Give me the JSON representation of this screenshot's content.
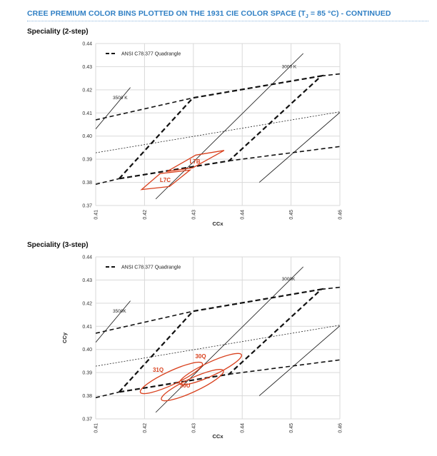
{
  "page": {
    "title_main": "CREE PREMIUM COLOR BINS PLOTTED ON THE 1931 CIE COLOR SPACE (T",
    "title_sub": "J",
    "title_tail": " = 85 °C) - CONTINUED"
  },
  "charts": [
    {
      "section_title": "Speciality (2-step)",
      "xlabel": "CCx",
      "ylabel": "",
      "legend": "ANSI C78.377 Quadrangle",
      "cct_labels": [
        "3500 K",
        "3000 K"
      ]
    },
    {
      "section_title": "Speciality (3-step)",
      "xlabel": "CCx",
      "ylabel": "CCy",
      "legend": "ANSI C78.377 Quadrangle",
      "cct_labels": [
        "3500K",
        "3000K"
      ]
    }
  ],
  "chart_data": [
    {
      "type": "line",
      "title": "Speciality (2-step)",
      "xlabel": "CCx",
      "ylabel": "",
      "xlim": [
        0.41,
        0.46
      ],
      "ylim": [
        0.37,
        0.44
      ],
      "x_ticks": [
        "0.41",
        "0.42",
        "0.43",
        "0.44",
        "0.45",
        "0.46"
      ],
      "y_ticks": [
        "0.37",
        "0.38",
        "0.39",
        "0.40",
        "0.41",
        "0.42",
        "0.43",
        "0.44"
      ],
      "grid": true,
      "legend_position": "top-left",
      "series": [
        {
          "name": "ANSI C78.377 Quadrangle",
          "style": "quad",
          "points": [
            [
              0.4148,
              0.3816
            ],
            [
              0.4299,
              0.4165
            ],
            [
              0.4562,
              0.426
            ],
            [
              0.4373,
              0.3893
            ],
            [
              0.4148,
              0.3816
            ]
          ]
        },
        {
          "style": "quad-edge",
          "points": [
            [
              0.41,
              0.3792
            ],
            [
              0.4148,
              0.3816
            ]
          ]
        },
        {
          "style": "quad-edge",
          "points": [
            [
              0.41,
              0.407
            ],
            [
              0.4299,
              0.4165
            ]
          ]
        },
        {
          "style": "quad-edge",
          "points": [
            [
              0.4562,
              0.426
            ],
            [
              0.46,
              0.4269
            ]
          ]
        },
        {
          "style": "quad-edge",
          "points": [
            [
              0.4373,
              0.3893
            ],
            [
              0.46,
              0.3955
            ]
          ]
        },
        {
          "style": "center",
          "points": [
            [
              0.41,
              0.3928
            ],
            [
              0.46,
              0.4105
            ]
          ]
        },
        {
          "style": "cct",
          "points": [
            [
              0.41,
              0.4031
            ],
            [
              0.4171,
              0.421
            ]
          ]
        },
        {
          "style": "cct",
          "points": [
            [
              0.4223,
              0.3728
            ],
            [
              0.4525,
              0.4357
            ]
          ]
        },
        {
          "style": "cct",
          "points": [
            [
              0.4435,
              0.38
            ],
            [
              0.46,
              0.4102
            ]
          ]
        }
      ],
      "bins": [
        {
          "name": "L7B",
          "points": [
            [
              0.4246,
              0.3847
            ],
            [
              0.4299,
              0.3863
            ],
            [
              0.4363,
              0.3938
            ],
            [
              0.4305,
              0.3918
            ],
            [
              0.4246,
              0.3847
            ]
          ]
        },
        {
          "name": "L7C",
          "points": [
            [
              0.4194,
              0.3769
            ],
            [
              0.4251,
              0.3782
            ],
            [
              0.4293,
              0.3853
            ],
            [
              0.4232,
              0.3838
            ],
            [
              0.4194,
              0.3769
            ]
          ]
        }
      ],
      "cct_labels": [
        {
          "text": "3500 K",
          "x": 0.4135,
          "y": 0.416
        },
        {
          "text": "3000 K",
          "x": 0.4481,
          "y": 0.4293
        }
      ]
    },
    {
      "type": "line",
      "title": "Speciality (3-step)",
      "xlabel": "CCx",
      "ylabel": "CCy",
      "xlim": [
        0.41,
        0.46
      ],
      "ylim": [
        0.37,
        0.44
      ],
      "x_ticks": [
        "0.41",
        "0.42",
        "0.43",
        "0.44",
        "0.45",
        "0.46"
      ],
      "y_ticks": [
        "0.37",
        "0.38",
        "0.39",
        "0.40",
        "0.41",
        "0.42",
        "0.43",
        "0.44"
      ],
      "grid": true,
      "legend_position": "top-left",
      "series": [
        {
          "name": "ANSI C78.377 Quadrangle",
          "style": "quad",
          "points": [
            [
              0.4148,
              0.3816
            ],
            [
              0.4299,
              0.4165
            ],
            [
              0.4562,
              0.426
            ],
            [
              0.4373,
              0.3893
            ],
            [
              0.4148,
              0.3816
            ]
          ]
        },
        {
          "style": "quad-edge",
          "points": [
            [
              0.41,
              0.3792
            ],
            [
              0.4148,
              0.3816
            ]
          ]
        },
        {
          "style": "quad-edge",
          "points": [
            [
              0.41,
              0.407
            ],
            [
              0.4299,
              0.4165
            ]
          ]
        },
        {
          "style": "quad-edge",
          "points": [
            [
              0.4562,
              0.426
            ],
            [
              0.46,
              0.4269
            ]
          ]
        },
        {
          "style": "quad-edge",
          "points": [
            [
              0.4373,
              0.3893
            ],
            [
              0.46,
              0.3955
            ]
          ]
        },
        {
          "style": "center",
          "points": [
            [
              0.41,
              0.3928
            ],
            [
              0.46,
              0.4105
            ]
          ]
        },
        {
          "style": "cct",
          "points": [
            [
              0.41,
              0.4031
            ],
            [
              0.4171,
              0.421
            ]
          ]
        },
        {
          "style": "cct",
          "points": [
            [
              0.4223,
              0.3728
            ],
            [
              0.4525,
              0.4357
            ]
          ]
        },
        {
          "style": "cct",
          "points": [
            [
              0.4435,
              0.38
            ],
            [
              0.46,
              0.4102
            ]
          ]
        }
      ],
      "ellipses": [
        {
          "name": "30Q",
          "cx": 0.4335,
          "cy": 0.3915,
          "rx": 0.007,
          "ry": 0.0065,
          "angle": -25
        },
        {
          "name": "31Q",
          "cx": 0.4255,
          "cy": 0.3877,
          "rx": 0.007,
          "ry": 0.0065,
          "angle": -25
        },
        {
          "name": "30U",
          "cx": 0.4298,
          "cy": 0.3846,
          "rx": 0.007,
          "ry": 0.0065,
          "angle": -25
        }
      ],
      "cct_labels": [
        {
          "text": "3500K",
          "x": 0.4135,
          "y": 0.416
        },
        {
          "text": "3000K",
          "x": 0.4481,
          "y": 0.4298
        }
      ]
    }
  ]
}
